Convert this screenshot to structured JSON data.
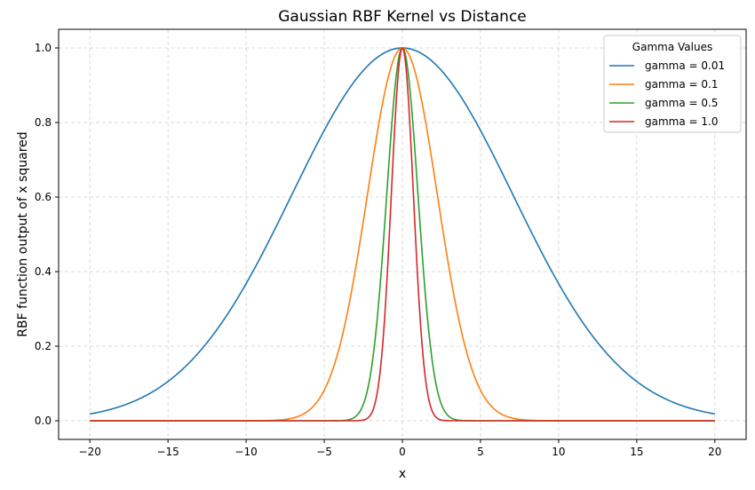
{
  "chart_data": {
    "type": "line",
    "title": "Gaussian RBF Kernel vs Distance",
    "xlabel": "x",
    "ylabel": "RBF function output of x squared",
    "xlim": [
      -22,
      22
    ],
    "ylim": [
      -0.05,
      1.05
    ],
    "xticks": [
      -20,
      -15,
      -10,
      -5,
      0,
      5,
      10,
      15,
      20
    ],
    "xtick_labels": [
      "−20",
      "−15",
      "−10",
      "−5",
      "0",
      "5",
      "10",
      "15",
      "20"
    ],
    "yticks": [
      0.0,
      0.2,
      0.4,
      0.6,
      0.8,
      1.0
    ],
    "ytick_labels": [
      "0.0",
      "0.2",
      "0.4",
      "0.6",
      "0.8",
      "1.0"
    ],
    "grid": true,
    "legend": {
      "title": "Gamma Values",
      "placement": "top-right"
    },
    "function": "exp(-gamma * x^2)",
    "x_range": [
      -20,
      20
    ],
    "series": [
      {
        "name": "gamma = 0.01",
        "gamma": 0.01,
        "color": "#1f77b4"
      },
      {
        "name": "gamma = 0.1",
        "gamma": 0.1,
        "color": "#ff7f0e"
      },
      {
        "name": "gamma = 0.5",
        "gamma": 0.5,
        "color": "#2ca02c"
      },
      {
        "name": "gamma = 1.0",
        "gamma": 1.0,
        "color": "#d62728"
      }
    ]
  }
}
